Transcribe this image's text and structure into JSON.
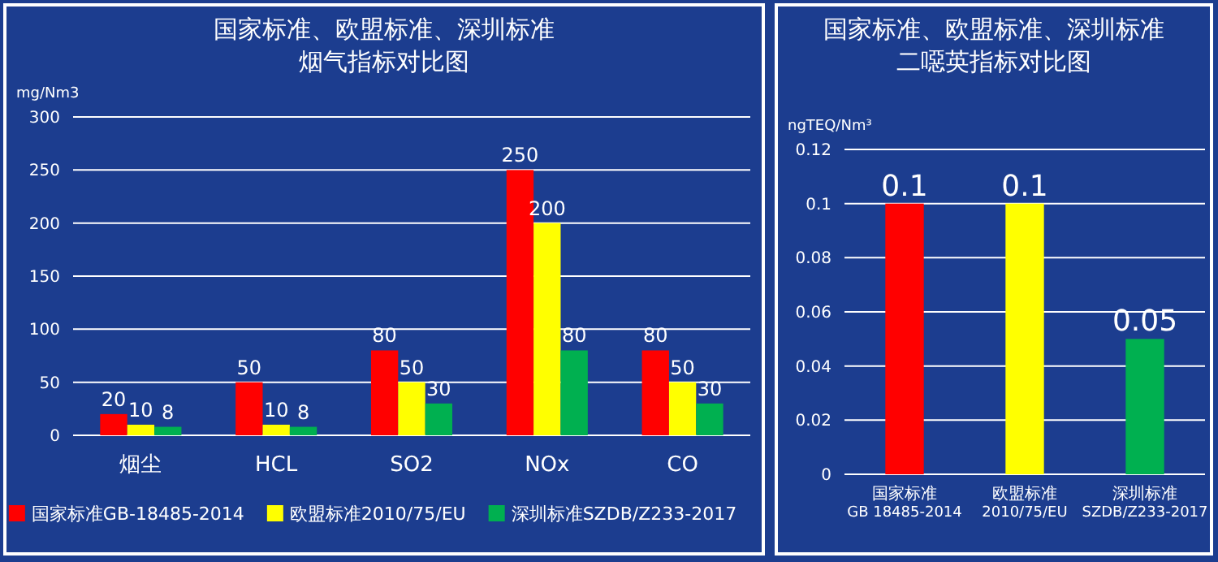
{
  "chart_data": [
    {
      "type": "bar",
      "title": "国家标准、欧盟标准、深圳标准",
      "subtitle": "烟气指标对比图",
      "ylabel": "mg/Nm3",
      "categories": [
        "烟尘",
        "HCL",
        "SO2",
        "NOx",
        "CO"
      ],
      "series": [
        {
          "name": "国家标准GB-18485-2014",
          "color": "#ff0000",
          "values": [
            20,
            50,
            80,
            250,
            80
          ]
        },
        {
          "name": "欧盟标准2010/75/EU",
          "color": "#ffff00",
          "values": [
            10,
            10,
            50,
            200,
            50
          ]
        },
        {
          "name": "深圳标准SZDB/Z233-2017",
          "color": "#00b050",
          "values": [
            8,
            8,
            30,
            80,
            30
          ]
        }
      ],
      "ylim": [
        0,
        300
      ],
      "yticks": [
        0,
        50,
        100,
        150,
        200,
        250,
        300
      ],
      "grid": "y",
      "legend": "bottom",
      "data_labels": true
    },
    {
      "type": "bar",
      "title": "国家标准、欧盟标准、深圳标准",
      "subtitle": "二噁英指标对比图",
      "ylabel": "ngTEQ/Nm³",
      "categories": [
        "国家标准GB 18485-2014",
        "欧盟标准2010/75/EU",
        "深圳标准SZDB/Z233-2017"
      ],
      "values": [
        0.1,
        0.1,
        0.05
      ],
      "colors": [
        "#ff0000",
        "#ffff00",
        "#00b050"
      ],
      "ylim": [
        0,
        0.12
      ],
      "yticks": [
        0,
        0.02,
        0.04,
        0.06,
        0.08,
        0.1,
        0.12
      ],
      "grid": "y",
      "data_labels": true
    }
  ]
}
